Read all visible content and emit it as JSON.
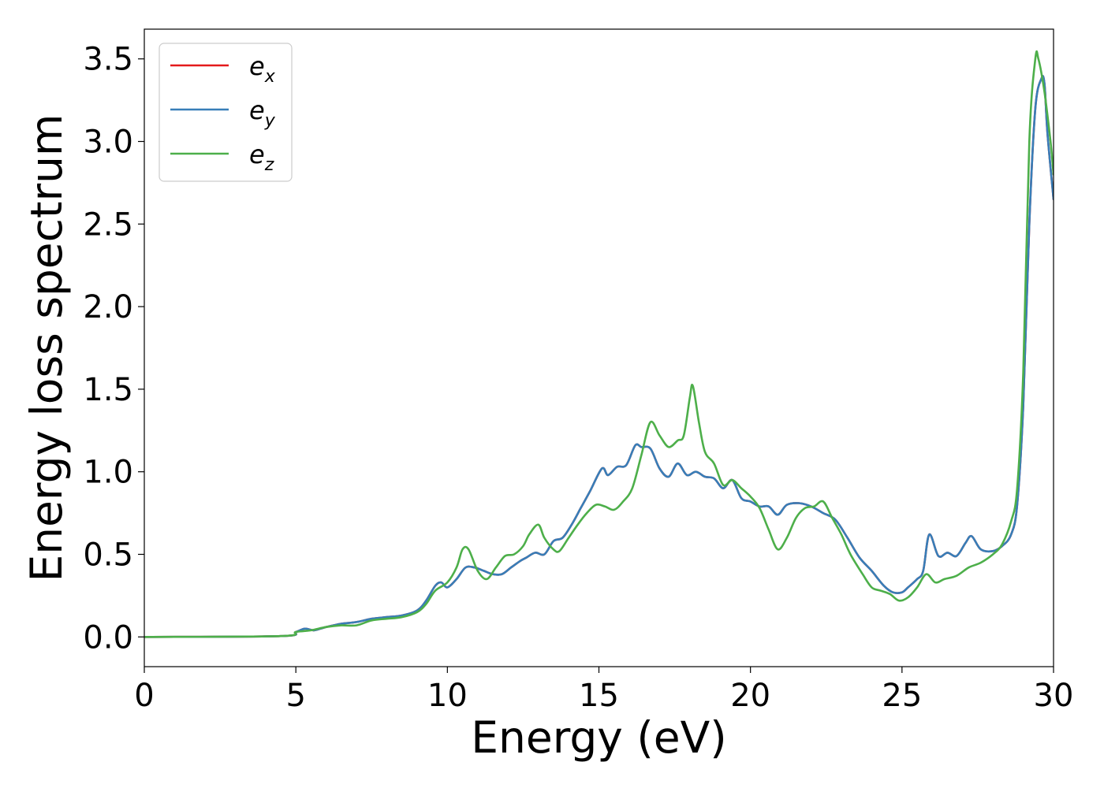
{
  "chart_data": {
    "type": "line",
    "title": "",
    "xlabel": "Energy (eV)",
    "ylabel": "Energy loss spectrum",
    "xlim": [
      0,
      30
    ],
    "ylim": [
      -0.18,
      3.68
    ],
    "xticks": [
      0,
      5,
      10,
      15,
      20,
      25,
      30
    ],
    "xtick_labels": [
      "0",
      "5",
      "10",
      "15",
      "20",
      "25",
      "30"
    ],
    "yticks": [
      0.0,
      0.5,
      1.0,
      1.5,
      2.0,
      2.5,
      3.0,
      3.5
    ],
    "ytick_labels": [
      "0.0",
      "0.5",
      "1.0",
      "1.5",
      "2.0",
      "2.5",
      "3.0",
      "3.5"
    ],
    "grid": false,
    "legend_position": "top-left",
    "series": [
      {
        "name": "e_x",
        "legend_base": "e",
        "legend_sub": "x",
        "color": "#e41a1c",
        "x": [
          0,
          4.5,
          5,
          5.3,
          5.6,
          6,
          6.5,
          7,
          7.5,
          8,
          8.5,
          9,
          9.3,
          9.6,
          9.8,
          10,
          10.3,
          10.6,
          10.9,
          11.2,
          11.5,
          11.8,
          12.1,
          12.4,
          12.6,
          12.9,
          13.2,
          13.5,
          13.8,
          14.1,
          14.4,
          14.7,
          15.1,
          15.3,
          15.6,
          15.9,
          16.2,
          16.4,
          16.7,
          17,
          17.3,
          17.6,
          17.9,
          18.2,
          18.5,
          18.8,
          19.1,
          19.4,
          19.7,
          20,
          20.3,
          20.6,
          20.9,
          21.2,
          21.6,
          22,
          22.4,
          22.8,
          23.2,
          23.6,
          24,
          24.4,
          24.7,
          25,
          25.2,
          25.5,
          25.7,
          25.9,
          26.2,
          26.5,
          26.8,
          27.1,
          27.3,
          27.6,
          28,
          28.3,
          28.6,
          28.8,
          29,
          29.2,
          29.4,
          29.6,
          29.7,
          29.8,
          30
        ],
        "values": [
          0,
          0.005,
          0.03,
          0.05,
          0.04,
          0.06,
          0.08,
          0.09,
          0.11,
          0.12,
          0.13,
          0.16,
          0.22,
          0.31,
          0.33,
          0.3,
          0.35,
          0.42,
          0.42,
          0.4,
          0.38,
          0.38,
          0.42,
          0.46,
          0.48,
          0.51,
          0.5,
          0.58,
          0.6,
          0.68,
          0.78,
          0.88,
          1.02,
          0.98,
          1.03,
          1.04,
          1.16,
          1.15,
          1.14,
          1.02,
          0.97,
          1.05,
          0.98,
          1.0,
          0.97,
          0.96,
          0.9,
          0.95,
          0.84,
          0.82,
          0.79,
          0.79,
          0.74,
          0.8,
          0.81,
          0.79,
          0.75,
          0.71,
          0.6,
          0.48,
          0.4,
          0.31,
          0.27,
          0.27,
          0.3,
          0.35,
          0.4,
          0.62,
          0.49,
          0.51,
          0.49,
          0.57,
          0.61,
          0.53,
          0.52,
          0.55,
          0.62,
          0.8,
          1.4,
          2.5,
          3.2,
          3.38,
          3.35,
          3.05,
          2.65
        ]
      },
      {
        "name": "e_y",
        "legend_base": "e",
        "legend_sub": "y",
        "color": "#377eb8",
        "x": [
          0,
          4.5,
          5,
          5.3,
          5.6,
          6,
          6.5,
          7,
          7.5,
          8,
          8.5,
          9,
          9.3,
          9.6,
          9.8,
          10,
          10.3,
          10.6,
          10.9,
          11.2,
          11.5,
          11.8,
          12.1,
          12.4,
          12.6,
          12.9,
          13.2,
          13.5,
          13.8,
          14.1,
          14.4,
          14.7,
          15.1,
          15.3,
          15.6,
          15.9,
          16.2,
          16.4,
          16.7,
          17,
          17.3,
          17.6,
          17.9,
          18.2,
          18.5,
          18.8,
          19.1,
          19.4,
          19.7,
          20,
          20.3,
          20.6,
          20.9,
          21.2,
          21.6,
          22,
          22.4,
          22.8,
          23.2,
          23.6,
          24,
          24.4,
          24.7,
          25,
          25.2,
          25.5,
          25.7,
          25.9,
          26.2,
          26.5,
          26.8,
          27.1,
          27.3,
          27.6,
          28,
          28.3,
          28.6,
          28.8,
          29,
          29.2,
          29.4,
          29.6,
          29.7,
          29.8,
          30
        ],
        "values": [
          0,
          0.005,
          0.03,
          0.05,
          0.04,
          0.06,
          0.08,
          0.09,
          0.11,
          0.12,
          0.13,
          0.16,
          0.22,
          0.31,
          0.33,
          0.3,
          0.35,
          0.42,
          0.42,
          0.4,
          0.38,
          0.38,
          0.42,
          0.46,
          0.48,
          0.51,
          0.5,
          0.58,
          0.6,
          0.68,
          0.78,
          0.88,
          1.02,
          0.98,
          1.03,
          1.04,
          1.16,
          1.15,
          1.14,
          1.02,
          0.97,
          1.05,
          0.98,
          1.0,
          0.97,
          0.96,
          0.9,
          0.95,
          0.84,
          0.82,
          0.79,
          0.79,
          0.74,
          0.8,
          0.81,
          0.79,
          0.75,
          0.71,
          0.6,
          0.48,
          0.4,
          0.31,
          0.27,
          0.27,
          0.3,
          0.35,
          0.4,
          0.62,
          0.49,
          0.51,
          0.49,
          0.57,
          0.61,
          0.53,
          0.52,
          0.55,
          0.62,
          0.8,
          1.4,
          2.5,
          3.2,
          3.38,
          3.35,
          3.05,
          2.65
        ]
      },
      {
        "name": "e_z",
        "legend_base": "e",
        "legend_sub": "z",
        "color": "#4daf4a",
        "x": [
          0,
          4.5,
          5,
          5.5,
          6,
          6.5,
          7,
          7.5,
          8,
          8.5,
          9,
          9.3,
          9.6,
          10,
          10.3,
          10.5,
          10.7,
          11,
          11.3,
          11.6,
          11.9,
          12.2,
          12.5,
          12.7,
          13,
          13.2,
          13.5,
          13.7,
          14,
          14.3,
          14.6,
          14.9,
          15.2,
          15.5,
          15.8,
          16.1,
          16.4,
          16.7,
          17,
          17.3,
          17.6,
          17.8,
          18,
          18.1,
          18.3,
          18.5,
          18.8,
          19.1,
          19.4,
          19.7,
          20,
          20.3,
          20.6,
          20.9,
          21.2,
          21.5,
          21.8,
          22.1,
          22.4,
          22.7,
          23,
          23.3,
          23.7,
          24,
          24.3,
          24.6,
          24.9,
          25.2,
          25.5,
          25.8,
          26.1,
          26.4,
          26.8,
          27.2,
          27.6,
          28,
          28.3,
          28.6,
          28.8,
          29,
          29.2,
          29.4,
          29.5,
          29.7,
          29.9,
          30
        ],
        "values": [
          0,
          0.005,
          0.03,
          0.04,
          0.06,
          0.07,
          0.07,
          0.1,
          0.11,
          0.12,
          0.15,
          0.2,
          0.28,
          0.33,
          0.42,
          0.53,
          0.53,
          0.4,
          0.35,
          0.42,
          0.49,
          0.5,
          0.55,
          0.62,
          0.68,
          0.6,
          0.53,
          0.52,
          0.6,
          0.68,
          0.75,
          0.8,
          0.79,
          0.77,
          0.82,
          0.9,
          1.1,
          1.3,
          1.22,
          1.15,
          1.19,
          1.22,
          1.45,
          1.52,
          1.3,
          1.12,
          1.05,
          0.92,
          0.95,
          0.9,
          0.85,
          0.78,
          0.65,
          0.53,
          0.6,
          0.72,
          0.78,
          0.79,
          0.82,
          0.72,
          0.62,
          0.5,
          0.38,
          0.3,
          0.28,
          0.26,
          0.22,
          0.24,
          0.3,
          0.38,
          0.33,
          0.35,
          0.37,
          0.42,
          0.45,
          0.5,
          0.56,
          0.7,
          0.9,
          1.6,
          3.0,
          3.5,
          3.5,
          3.3,
          3.0,
          2.8
        ]
      }
    ]
  }
}
